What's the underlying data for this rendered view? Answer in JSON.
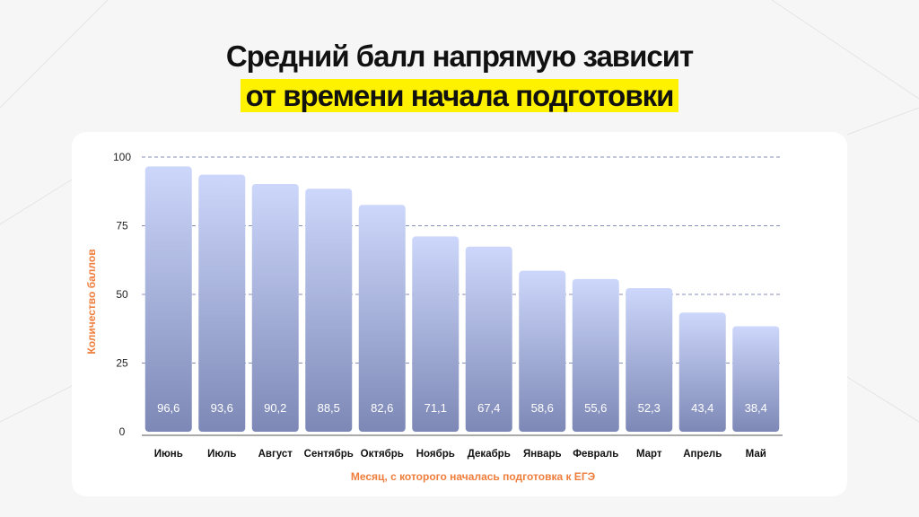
{
  "title": {
    "line1": "Средний балл  напрямую зависит",
    "line2": "от времени начала подготовки"
  },
  "colors": {
    "highlight": "#fff200",
    "axis_title": "#ef7d3c",
    "bar_top": "#cdd7fb",
    "bar_bottom": "#7d88b6",
    "grid": "#5e6aa0"
  },
  "chart_data": {
    "type": "bar",
    "categories": [
      "Июнь",
      "Июль",
      "Август",
      "Сентябрь",
      "Октябрь",
      "Ноябрь",
      "Декабрь",
      "Январь",
      "Февраль",
      "Март",
      "Апрель",
      "Май"
    ],
    "values": [
      96.6,
      93.6,
      90.2,
      88.5,
      82.6,
      71.1,
      67.4,
      58.6,
      55.6,
      52.3,
      43.4,
      38.4
    ],
    "value_labels": [
      "96,6",
      "93,6",
      "90,2",
      "88,5",
      "82,6",
      "71,1",
      "67,4",
      "58,6",
      "55,6",
      "52,3",
      "43,4",
      "38,4"
    ],
    "title": "",
    "xlabel": "Месяц, с которого началась подготовка к ЕГЭ",
    "ylabel": "Количество баллов",
    "ylim": [
      0,
      100
    ],
    "yticks": [
      0,
      25,
      50,
      75,
      100
    ],
    "grid": true,
    "legend": "none"
  }
}
